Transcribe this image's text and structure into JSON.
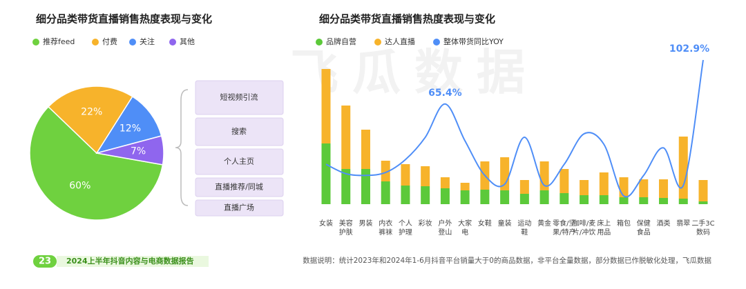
{
  "chart_data": [
    {
      "type": "pie",
      "title": "细分品类带货直播销售热度表现与变化",
      "categories": [
        "推荐feed",
        "付费",
        "关注",
        "其他"
      ],
      "values": [
        60,
        22,
        12,
        7
      ],
      "value_labels": [
        "60%",
        "22%",
        "12%",
        "7%"
      ],
      "colors": [
        "#6fd13f",
        "#f7b32b",
        "#4f8ef7",
        "#8f66ee"
      ],
      "channels": [
        "短视频引流",
        "搜索",
        "个人主页",
        "直播推荐/同城",
        "直播广场"
      ]
    },
    {
      "type": "bar-line",
      "title": "细分品类带货直播销售热度表现与变化",
      "categories": [
        "女装",
        "美容\n护肤",
        "男装",
        "内衣\n裤袜",
        "个人\n护理",
        "彩妆",
        "户外\n登山",
        "大家\n电",
        "女鞋",
        "童装",
        "运动\n鞋",
        "黄金",
        "零食/坚\n果/特产",
        "咖啡/麦\n片/冲饮",
        "床上\n用品",
        "箱包",
        "保健\n食品",
        "酒类",
        "翡翠",
        "二手3C\n数码"
      ],
      "series": [
        {
          "name": "品牌自营",
          "color": "#5cc93a",
          "values": [
            88,
            51,
            51,
            33,
            27,
            26,
            23,
            20,
            21,
            20,
            15,
            20,
            16,
            13,
            13,
            10,
            10,
            9,
            8,
            4
          ]
        },
        {
          "name": "达人直播",
          "color": "#f7b32b",
          "values": [
            108,
            92,
            57,
            30,
            31,
            29,
            16,
            11,
            41,
            48,
            20,
            42,
            35,
            22,
            33,
            29,
            26,
            27,
            90,
            31
          ]
        },
        {
          "name": "整体带货同比YOY",
          "color": "#4f8ef7",
          "axis": "y2",
          "values": [
            14,
            6,
            4.5,
            7,
            18,
            37,
            65.4,
            34,
            4.5,
            -3,
            37,
            -4,
            14,
            40,
            31,
            -13,
            4.5,
            28,
            -4,
            102.9
          ],
          "value_labels": [
            null,
            null,
            null,
            null,
            null,
            null,
            "65.4%",
            null,
            null,
            null,
            null,
            null,
            null,
            null,
            null,
            null,
            null,
            null,
            null,
            "102.9%"
          ]
        }
      ],
      "ylim": [
        0,
        216
      ],
      "y2lim": [
        -20,
        107
      ]
    }
  ],
  "watermark": "飞瓜数据",
  "footer": {
    "page_number": "23",
    "report": "2024上半年抖音内容与电商数据报告",
    "note": "数据说明：统计2023年和2024年1-6月抖音平台销量大于0的商品数据，非平台全量数据，部分数据已作脱敏化处理，飞瓜数据"
  }
}
